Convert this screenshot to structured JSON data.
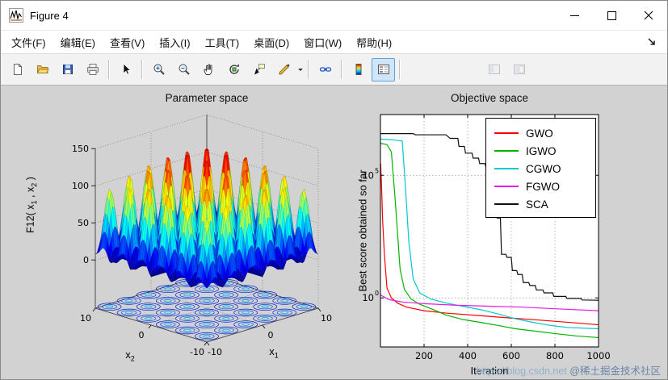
{
  "window": {
    "title": "Figure 4",
    "icon": "matlab-figure-icon",
    "controls": [
      "minimize",
      "maximize",
      "close"
    ]
  },
  "menu": {
    "items": [
      {
        "id": "file",
        "label": "文件(F)"
      },
      {
        "id": "edit",
        "label": "编辑(E)"
      },
      {
        "id": "view",
        "label": "查看(V)"
      },
      {
        "id": "insert",
        "label": "插入(I)"
      },
      {
        "id": "tools",
        "label": "工具(T)"
      },
      {
        "id": "desktop",
        "label": "桌面(D)"
      },
      {
        "id": "window",
        "label": "窗口(W)"
      },
      {
        "id": "help",
        "label": "帮助(H)"
      }
    ]
  },
  "toolbar": {
    "buttons": [
      {
        "id": "new-figure"
      },
      {
        "id": "open-file"
      },
      {
        "id": "save-figure"
      },
      {
        "id": "print-figure"
      },
      {
        "id": "edit-plot"
      },
      {
        "id": "zoom-in"
      },
      {
        "id": "zoom-out"
      },
      {
        "id": "pan"
      },
      {
        "id": "rotate-3d"
      },
      {
        "id": "data-cursor"
      },
      {
        "id": "brush-data",
        "has_dropdown": true
      },
      {
        "id": "link-plot"
      },
      {
        "id": "insert-colorbar"
      },
      {
        "id": "insert-legend",
        "state": "active"
      },
      {
        "id": "hide-plot-tools",
        "state": "disabled"
      },
      {
        "id": "show-plot-tools-dock",
        "state": "disabled"
      }
    ]
  },
  "chart_data": [
    {
      "type": "surface",
      "title": "Parameter space",
      "xlabel_base": "x",
      "xlabel_sub": "1",
      "ylabel_base": "x",
      "ylabel_sub": "2",
      "zlabel_parts": [
        "F12( x",
        "1",
        " , x",
        "2",
        " )"
      ],
      "xlim": [
        -10,
        10
      ],
      "ylim": [
        -10,
        10
      ],
      "zlim": [
        0,
        150
      ],
      "xticks": [
        -10,
        0,
        10
      ],
      "yticks": [
        -10,
        0,
        10
      ],
      "zticks": [
        0,
        50,
        100,
        150
      ],
      "colormap": "jet",
      "contours_below": true,
      "surface": {
        "grid_n": 64,
        "k": 0.9,
        "amplitude": 150,
        "env_base": 0.45,
        "env_gain": 0.55,
        "env_radius": 130,
        "ripple_amp": 5,
        "ripple_k": 1.7
      }
    },
    {
      "type": "line",
      "title": "Objective space",
      "xlabel": "Iteration",
      "ylabel": "Best score obtained so far",
      "xscale": "linear",
      "yscale": "log",
      "xlim": [
        0,
        1000
      ],
      "ylim": [
        0.01,
        30000000
      ],
      "xticks": [
        200,
        400,
        600,
        800,
        1000
      ],
      "ytick_exponents": [
        0,
        5
      ],
      "grid": true,
      "legend_position": "northeast",
      "series": [
        {
          "name": "GWO",
          "color": "#ff0000",
          "points": [
            [
              1,
              300000
            ],
            [
              5,
              40000
            ],
            [
              10,
              1500
            ],
            [
              18,
              60
            ],
            [
              30,
              2.5
            ],
            [
              50,
              1.0
            ],
            [
              80,
              0.6
            ],
            [
              120,
              0.42
            ],
            [
              200,
              0.3
            ],
            [
              300,
              0.24
            ],
            [
              450,
              0.19
            ],
            [
              600,
              0.15
            ],
            [
              750,
              0.12
            ],
            [
              900,
              0.095
            ],
            [
              1000,
              0.08
            ]
          ]
        },
        {
          "name": "IGWO",
          "color": "#00b400",
          "points": [
            [
              1,
              2000000
            ],
            [
              30,
              1800000
            ],
            [
              50,
              900000
            ],
            [
              65,
              20000
            ],
            [
              78,
              500
            ],
            [
              90,
              15
            ],
            [
              110,
              2.2
            ],
            [
              140,
              0.9
            ],
            [
              180,
              0.55
            ],
            [
              240,
              0.34
            ],
            [
              300,
              0.2
            ],
            [
              380,
              0.13
            ],
            [
              460,
              0.1
            ],
            [
              540,
              0.075
            ],
            [
              620,
              0.055
            ],
            [
              700,
              0.045
            ],
            [
              800,
              0.035
            ],
            [
              900,
              0.028
            ],
            [
              1000,
              0.024
            ]
          ]
        },
        {
          "name": "CGWO",
          "color": "#00c8d0",
          "points": [
            [
              1,
              3000000
            ],
            [
              60,
              2800000
            ],
            [
              100,
              2500000
            ],
            [
              115,
              30000
            ],
            [
              130,
              200
            ],
            [
              150,
              6
            ],
            [
              180,
              1.6
            ],
            [
              230,
              0.9
            ],
            [
              300,
              0.62
            ],
            [
              380,
              0.45
            ],
            [
              460,
              0.33
            ],
            [
              540,
              0.22
            ],
            [
              620,
              0.14
            ],
            [
              700,
              0.1
            ],
            [
              780,
              0.075
            ],
            [
              860,
              0.062
            ],
            [
              1000,
              0.055
            ]
          ]
        },
        {
          "name": "FGWO",
          "color": "#e818e8",
          "points": [
            [
              1,
              1.3
            ],
            [
              40,
              0.85
            ],
            [
              100,
              0.68
            ],
            [
              200,
              0.58
            ],
            [
              350,
              0.5
            ],
            [
              500,
              0.46
            ],
            [
              650,
              0.42
            ],
            [
              800,
              0.36
            ],
            [
              1000,
              0.3
            ]
          ]
        },
        {
          "name": "SCA",
          "color": "#101010",
          "points": [
            [
              1,
              5000000
            ],
            [
              150,
              5000000
            ],
            [
              160,
              4500000
            ],
            [
              300,
              4500000
            ],
            [
              320,
              3200000
            ],
            [
              355,
              3200000
            ],
            [
              360,
              1500000
            ],
            [
              385,
              1500000
            ],
            [
              390,
              800000
            ],
            [
              420,
              800000
            ],
            [
              425,
              500000
            ],
            [
              450,
              500000
            ],
            [
              455,
              300000
            ],
            [
              480,
              300000
            ],
            [
              485,
              180000
            ],
            [
              505,
              180000
            ],
            [
              510,
              2500
            ],
            [
              530,
              2500
            ],
            [
              535,
              1800
            ],
            [
              550,
              1800
            ],
            [
              555,
              60
            ],
            [
              575,
              60
            ],
            [
              580,
              45
            ],
            [
              600,
              45
            ],
            [
              605,
              13
            ],
            [
              625,
              13
            ],
            [
              630,
              9
            ],
            [
              650,
              9
            ],
            [
              655,
              4.2
            ],
            [
              680,
              4.2
            ],
            [
              685,
              3.2
            ],
            [
              710,
              3.2
            ],
            [
              715,
              2.1
            ],
            [
              745,
              2.1
            ],
            [
              750,
              1.6
            ],
            [
              790,
              1.6
            ],
            [
              795,
              1.15
            ],
            [
              850,
              1.15
            ],
            [
              855,
              0.95
            ],
            [
              920,
              0.95
            ],
            [
              925,
              0.82
            ],
            [
              1000,
              0.8
            ]
          ]
        }
      ]
    }
  ],
  "watermark": {
    "url_text": "https://blog.csdn.net",
    "community_text": "@稀土掘金技术社区"
  }
}
